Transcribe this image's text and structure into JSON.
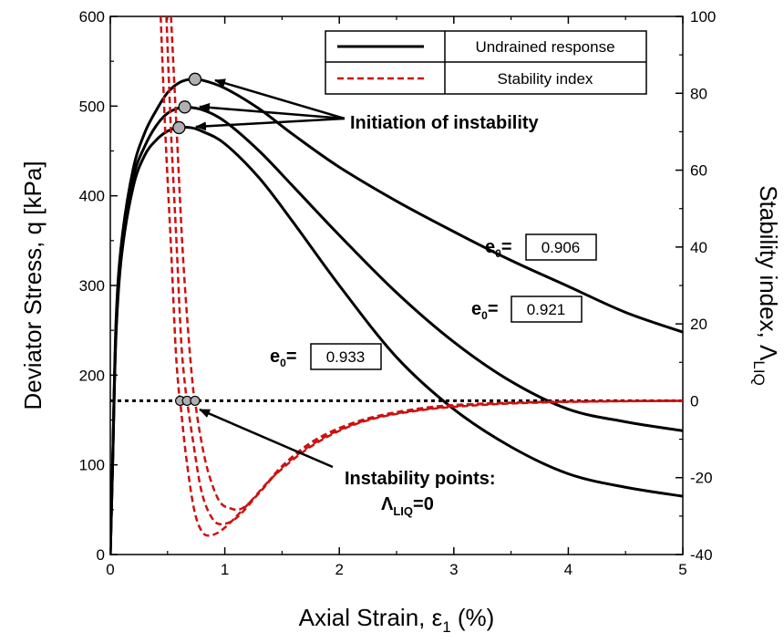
{
  "chart_data": {
    "type": "line",
    "xlabel": "Axial Strain, ε",
    "xlabel_sub": "1",
    "xlabel_unit": " (%)",
    "ylabel": "Deviator Stress, q [kPa]",
    "y2label": "Stability index, Λ",
    "y2label_sub": "LIQ",
    "xlim": [
      0,
      5
    ],
    "ylim": [
      0,
      600
    ],
    "y2lim": [
      -40,
      100
    ],
    "x_ticks": [
      0,
      1,
      2,
      3,
      4,
      5
    ],
    "y_ticks": [
      0,
      100,
      200,
      300,
      400,
      500,
      600
    ],
    "y2_ticks": [
      -40,
      -20,
      0,
      20,
      40,
      60,
      80,
      100
    ],
    "legend": {
      "position": "top-right",
      "entries": [
        {
          "label": "Undrained response",
          "style": "solid",
          "color": "#000000"
        },
        {
          "label": "Stability index",
          "style": "dashed",
          "color": "#cc1111"
        }
      ]
    },
    "series": [
      {
        "name": "e0 = 0.906",
        "kind": "undrained",
        "axis": "left",
        "points": [
          [
            0,
            0
          ],
          [
            0.02,
            100
          ],
          [
            0.05,
            260
          ],
          [
            0.1,
            350
          ],
          [
            0.2,
            430
          ],
          [
            0.3,
            470
          ],
          [
            0.4,
            495
          ],
          [
            0.5,
            515
          ],
          [
            0.6,
            526
          ],
          [
            0.7,
            530
          ],
          [
            0.8,
            529
          ],
          [
            1.0,
            520
          ],
          [
            1.3,
            497
          ],
          [
            1.6,
            468
          ],
          [
            2.0,
            432
          ],
          [
            2.5,
            394
          ],
          [
            3.0,
            360
          ],
          [
            3.5,
            328
          ],
          [
            4.0,
            299
          ],
          [
            4.5,
            270
          ],
          [
            5.0,
            248
          ]
        ]
      },
      {
        "name": "e0 = 0.921",
        "kind": "undrained",
        "axis": "left",
        "points": [
          [
            0,
            0
          ],
          [
            0.02,
            100
          ],
          [
            0.05,
            250
          ],
          [
            0.1,
            340
          ],
          [
            0.2,
            420
          ],
          [
            0.3,
            455
          ],
          [
            0.4,
            478
          ],
          [
            0.5,
            492
          ],
          [
            0.6,
            498
          ],
          [
            0.65,
            499
          ],
          [
            0.8,
            496
          ],
          [
            1.0,
            483
          ],
          [
            1.3,
            450
          ],
          [
            1.6,
            410
          ],
          [
            2.0,
            356
          ],
          [
            2.5,
            292
          ],
          [
            3.0,
            237
          ],
          [
            3.5,
            193
          ],
          [
            4.0,
            162
          ],
          [
            4.5,
            148
          ],
          [
            5.0,
            138
          ]
        ]
      },
      {
        "name": "e0 = 0.933",
        "kind": "undrained",
        "axis": "left",
        "points": [
          [
            0,
            0
          ],
          [
            0.02,
            100
          ],
          [
            0.05,
            245
          ],
          [
            0.1,
            335
          ],
          [
            0.2,
            410
          ],
          [
            0.3,
            445
          ],
          [
            0.4,
            462
          ],
          [
            0.5,
            472
          ],
          [
            0.6,
            476
          ],
          [
            0.7,
            476
          ],
          [
            0.8,
            472
          ],
          [
            1.0,
            458
          ],
          [
            1.3,
            420
          ],
          [
            1.6,
            370
          ],
          [
            2.0,
            300
          ],
          [
            2.5,
            220
          ],
          [
            3.0,
            162
          ],
          [
            3.5,
            120
          ],
          [
            4.0,
            90
          ],
          [
            4.5,
            75
          ],
          [
            5.0,
            65
          ]
        ]
      },
      {
        "name": "Λ e0 = 0.906",
        "kind": "stability",
        "axis": "right",
        "points": [
          [
            0.53,
            100
          ],
          [
            0.58,
            70
          ],
          [
            0.63,
            40
          ],
          [
            0.68,
            18
          ],
          [
            0.72,
            4
          ],
          [
            0.74,
            0
          ],
          [
            0.78,
            -8
          ],
          [
            0.85,
            -18
          ],
          [
            0.95,
            -26
          ],
          [
            1.05,
            -28
          ],
          [
            1.15,
            -28
          ],
          [
            1.3,
            -24
          ],
          [
            1.5,
            -17
          ],
          [
            1.8,
            -10
          ],
          [
            2.2,
            -5
          ],
          [
            2.7,
            -2
          ],
          [
            3.2,
            -0.8
          ],
          [
            4.0,
            -0.2
          ],
          [
            5.0,
            0
          ]
        ]
      },
      {
        "name": "Λ e0 = 0.921",
        "kind": "stability",
        "axis": "right",
        "points": [
          [
            0.49,
            100
          ],
          [
            0.53,
            70
          ],
          [
            0.58,
            40
          ],
          [
            0.62,
            15
          ],
          [
            0.66,
            2
          ],
          [
            0.67,
            0
          ],
          [
            0.72,
            -10
          ],
          [
            0.8,
            -24
          ],
          [
            0.9,
            -31
          ],
          [
            1.0,
            -32
          ],
          [
            1.12,
            -30
          ],
          [
            1.3,
            -24
          ],
          [
            1.55,
            -16
          ],
          [
            1.9,
            -9
          ],
          [
            2.3,
            -4.5
          ],
          [
            2.8,
            -2
          ],
          [
            3.3,
            -0.8
          ],
          [
            4.0,
            -0.2
          ],
          [
            5.0,
            0
          ]
        ]
      },
      {
        "name": "Λ e0 = 0.933",
        "kind": "stability",
        "axis": "right",
        "points": [
          [
            0.44,
            100
          ],
          [
            0.48,
            70
          ],
          [
            0.53,
            40
          ],
          [
            0.57,
            14
          ],
          [
            0.6,
            2
          ],
          [
            0.61,
            0
          ],
          [
            0.66,
            -14
          ],
          [
            0.73,
            -28
          ],
          [
            0.8,
            -34
          ],
          [
            0.88,
            -35
          ],
          [
            1.0,
            -33
          ],
          [
            1.2,
            -27
          ],
          [
            1.45,
            -19
          ],
          [
            1.8,
            -11
          ],
          [
            2.2,
            -5.5
          ],
          [
            2.7,
            -2.5
          ],
          [
            3.3,
            -1
          ],
          [
            4.0,
            -0.3
          ],
          [
            5.0,
            0
          ]
        ]
      }
    ],
    "peak_markers": [
      [
        0.74,
        530
      ],
      [
        0.65,
        499
      ],
      [
        0.6,
        476
      ]
    ],
    "instability_markers": [
      [
        0.61,
        0
      ],
      [
        0.67,
        0
      ],
      [
        0.74,
        0
      ]
    ],
    "zero_line": {
      "axis": "right",
      "value": 0
    },
    "annotations": {
      "initiation": "Initiation of instability",
      "instability_line1": "Instability points:",
      "instability_lambda": "Λ",
      "instability_sub": "LIQ",
      "instability_rest": "=0",
      "e0_prefix": "e",
      "e0_sub": "0",
      "e0_eq": "=",
      "e0_values": [
        "0.906",
        "0.921",
        "0.933"
      ]
    }
  }
}
